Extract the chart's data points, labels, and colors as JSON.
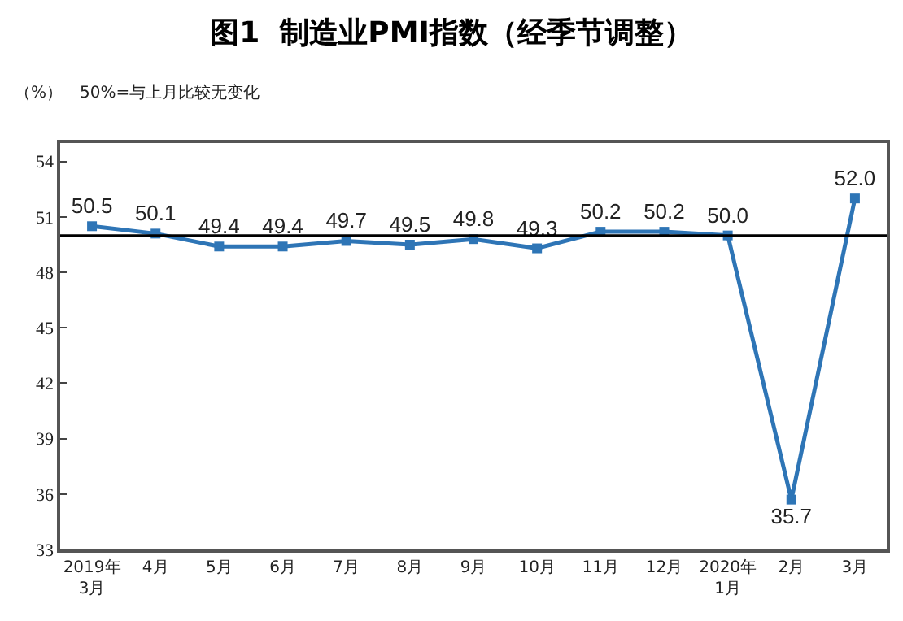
{
  "chart_data": {
    "type": "line",
    "title": "图1  制造业PMI指数（经季节调整）",
    "ylabel": "（%）",
    "annotations": [
      "50%=与上月比较无变化"
    ],
    "categories": [
      "2019年\n3月",
      "4月",
      "5月",
      "6月",
      "7月",
      "8月",
      "9月",
      "10月",
      "11月",
      "12月",
      "2020年\n1月",
      "2月",
      "3月"
    ],
    "series": [
      {
        "color": "#2e75b6",
        "values": [
          50.5,
          50.1,
          49.4,
          49.4,
          49.7,
          49.5,
          49.8,
          49.3,
          50.2,
          50.2,
          50.0,
          35.7,
          52.0
        ],
        "value_labels": [
          "50.5",
          "50.1",
          "49.4",
          "49.4",
          "49.7",
          "49.5",
          "49.8",
          "49.3",
          "50.2",
          "50.2",
          "50.0",
          "35.7",
          "52.0"
        ]
      }
    ],
    "ylim": [
      33,
      55
    ],
    "yticks": [
      33,
      36,
      39,
      42,
      45,
      48,
      51,
      54
    ],
    "grid": false,
    "marker": "square",
    "line_style": "solid",
    "ref_lines": [
      {
        "axis": "y",
        "value": 50,
        "color": "#000000"
      }
    ]
  }
}
